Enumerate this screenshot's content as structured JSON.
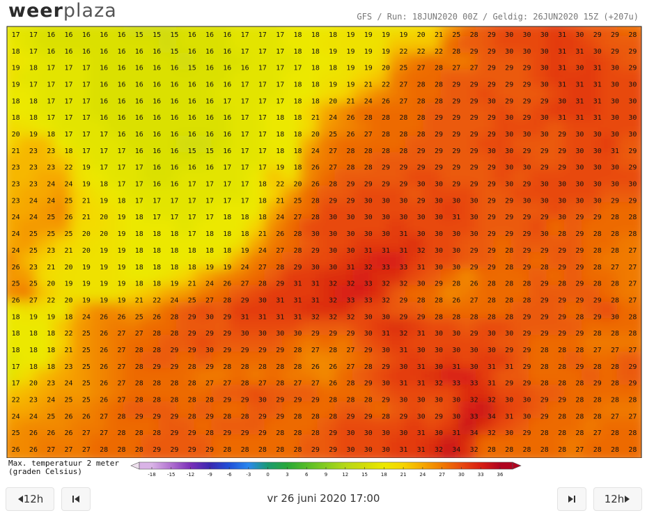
{
  "header": {
    "logo_left": "weer",
    "logo_right": "plaza",
    "run_info": "GFS / Run: 18JUN2020 00Z / Geldig: 26JUN2020 15Z (+207u)"
  },
  "map": {
    "temperatures": [
      [
        17,
        17,
        16,
        16,
        16,
        16,
        16,
        15,
        15,
        15,
        16,
        16,
        16,
        17,
        17,
        17,
        18,
        18,
        18,
        19,
        19,
        19,
        19,
        20,
        21,
        25,
        28,
        29,
        30,
        30,
        30,
        31,
        30,
        29,
        29,
        28
      ],
      [
        18,
        17,
        16,
        16,
        16,
        16,
        16,
        16,
        16,
        15,
        16,
        16,
        16,
        17,
        17,
        17,
        18,
        18,
        19,
        19,
        19,
        19,
        22,
        22,
        22,
        28,
        29,
        29,
        30,
        30,
        30,
        31,
        31,
        30,
        29,
        29
      ],
      [
        19,
        18,
        17,
        17,
        17,
        16,
        16,
        16,
        16,
        16,
        15,
        16,
        16,
        16,
        17,
        17,
        17,
        18,
        18,
        19,
        19,
        20,
        25,
        27,
        28,
        27,
        27,
        29,
        29,
        29,
        30,
        31,
        30,
        31,
        30,
        29
      ],
      [
        19,
        17,
        17,
        17,
        17,
        16,
        16,
        16,
        16,
        16,
        16,
        16,
        16,
        17,
        17,
        17,
        18,
        18,
        19,
        19,
        21,
        22,
        27,
        28,
        28,
        29,
        29,
        29,
        29,
        29,
        30,
        31,
        31,
        31,
        30,
        30
      ],
      [
        18,
        18,
        17,
        17,
        17,
        16,
        16,
        16,
        16,
        16,
        16,
        16,
        17,
        17,
        17,
        17,
        18,
        18,
        20,
        21,
        24,
        26,
        27,
        28,
        28,
        29,
        29,
        30,
        29,
        29,
        29,
        30,
        31,
        31,
        30,
        30
      ],
      [
        18,
        18,
        17,
        17,
        17,
        16,
        16,
        16,
        16,
        16,
        16,
        16,
        16,
        17,
        17,
        18,
        18,
        21,
        24,
        26,
        28,
        28,
        28,
        28,
        29,
        29,
        29,
        29,
        30,
        29,
        30,
        31,
        31,
        31,
        30,
        30
      ],
      [
        20,
        19,
        18,
        17,
        17,
        17,
        16,
        16,
        16,
        16,
        16,
        16,
        16,
        17,
        17,
        18,
        18,
        20,
        25,
        26,
        27,
        28,
        28,
        28,
        29,
        29,
        29,
        29,
        30,
        30,
        30,
        29,
        30,
        30,
        30,
        30
      ],
      [
        21,
        23,
        23,
        18,
        17,
        17,
        17,
        16,
        16,
        16,
        15,
        15,
        16,
        17,
        17,
        18,
        18,
        24,
        27,
        28,
        28,
        28,
        28,
        29,
        29,
        29,
        29,
        30,
        30,
        29,
        29,
        29,
        30,
        30,
        31,
        29
      ],
      [
        23,
        23,
        23,
        22,
        19,
        17,
        17,
        17,
        16,
        16,
        16,
        16,
        17,
        17,
        17,
        19,
        18,
        26,
        27,
        28,
        28,
        29,
        29,
        29,
        29,
        29,
        29,
        29,
        30,
        30,
        29,
        29,
        30,
        30,
        30,
        29
      ],
      [
        23,
        23,
        24,
        24,
        19,
        18,
        17,
        17,
        16,
        16,
        17,
        17,
        17,
        17,
        18,
        22,
        20,
        26,
        28,
        29,
        29,
        29,
        29,
        30,
        30,
        29,
        29,
        29,
        30,
        29,
        30,
        30,
        30,
        30,
        30,
        30
      ],
      [
        23,
        24,
        24,
        25,
        21,
        19,
        18,
        17,
        17,
        17,
        17,
        17,
        17,
        17,
        18,
        21,
        25,
        28,
        29,
        29,
        30,
        30,
        30,
        29,
        30,
        30,
        30,
        29,
        29,
        30,
        30,
        30,
        30,
        30,
        29,
        29
      ],
      [
        24,
        24,
        25,
        26,
        21,
        20,
        19,
        18,
        17,
        17,
        17,
        17,
        18,
        18,
        18,
        24,
        27,
        28,
        30,
        30,
        30,
        30,
        30,
        30,
        30,
        31,
        30,
        29,
        29,
        29,
        29,
        30,
        29,
        29,
        28,
        28
      ],
      [
        24,
        25,
        25,
        25,
        20,
        20,
        19,
        18,
        18,
        18,
        17,
        18,
        18,
        18,
        21,
        26,
        28,
        30,
        30,
        30,
        30,
        30,
        31,
        30,
        30,
        30,
        30,
        29,
        29,
        29,
        30,
        28,
        29,
        28,
        28,
        28
      ],
      [
        24,
        25,
        23,
        21,
        20,
        19,
        19,
        18,
        18,
        18,
        18,
        18,
        18,
        19,
        24,
        27,
        28,
        29,
        30,
        30,
        31,
        31,
        31,
        32,
        30,
        30,
        29,
        29,
        28,
        29,
        29,
        29,
        29,
        28,
        28,
        27
      ],
      [
        26,
        23,
        21,
        20,
        19,
        19,
        19,
        18,
        18,
        18,
        18,
        19,
        19,
        24,
        27,
        28,
        29,
        30,
        30,
        31,
        32,
        33,
        33,
        31,
        30,
        30,
        29,
        29,
        28,
        29,
        28,
        29,
        29,
        28,
        27,
        27
      ],
      [
        25,
        25,
        20,
        19,
        19,
        19,
        19,
        18,
        18,
        19,
        21,
        24,
        26,
        27,
        28,
        29,
        31,
        31,
        32,
        32,
        33,
        32,
        32,
        30,
        29,
        28,
        26,
        28,
        28,
        28,
        29,
        28,
        29,
        28,
        28,
        27
      ],
      [
        26,
        27,
        22,
        20,
        19,
        19,
        19,
        21,
        22,
        24,
        25,
        27,
        28,
        29,
        30,
        31,
        31,
        31,
        32,
        33,
        33,
        32,
        29,
        28,
        28,
        26,
        27,
        28,
        28,
        28,
        29,
        29,
        29,
        29,
        28,
        27
      ],
      [
        18,
        19,
        19,
        18,
        24,
        26,
        26,
        25,
        26,
        28,
        29,
        30,
        29,
        31,
        31,
        31,
        31,
        32,
        32,
        32,
        30,
        30,
        29,
        29,
        28,
        28,
        28,
        28,
        28,
        29,
        29,
        29,
        28,
        29,
        30,
        28
      ],
      [
        18,
        18,
        18,
        22,
        25,
        26,
        27,
        27,
        28,
        28,
        29,
        29,
        29,
        30,
        30,
        30,
        30,
        29,
        29,
        29,
        30,
        31,
        32,
        31,
        30,
        30,
        29,
        30,
        30,
        29,
        29,
        29,
        29,
        28,
        28,
        28
      ],
      [
        18,
        18,
        18,
        21,
        25,
        26,
        27,
        28,
        28,
        29,
        29,
        30,
        29,
        29,
        29,
        29,
        28,
        27,
        28,
        27,
        29,
        30,
        31,
        30,
        30,
        30,
        30,
        30,
        29,
        29,
        28,
        28,
        28,
        27,
        27,
        27
      ],
      [
        17,
        18,
        18,
        23,
        25,
        26,
        27,
        28,
        29,
        29,
        28,
        29,
        28,
        28,
        28,
        28,
        28,
        26,
        26,
        27,
        28,
        29,
        30,
        31,
        30,
        31,
        30,
        31,
        31,
        29,
        28,
        28,
        29,
        28,
        28,
        29
      ],
      [
        17,
        20,
        23,
        24,
        25,
        26,
        27,
        28,
        28,
        28,
        28,
        27,
        27,
        28,
        27,
        28,
        27,
        27,
        26,
        28,
        29,
        30,
        31,
        31,
        32,
        33,
        33,
        31,
        29,
        29,
        28,
        28,
        28,
        29,
        28,
        29
      ],
      [
        22,
        23,
        24,
        25,
        25,
        26,
        27,
        28,
        28,
        28,
        28,
        28,
        29,
        29,
        30,
        29,
        29,
        29,
        28,
        28,
        28,
        29,
        30,
        30,
        30,
        30,
        32,
        32,
        30,
        30,
        29,
        29,
        28,
        28,
        28,
        28
      ],
      [
        24,
        24,
        25,
        26,
        26,
        27,
        28,
        29,
        29,
        29,
        28,
        29,
        28,
        28,
        29,
        29,
        28,
        28,
        28,
        29,
        29,
        28,
        29,
        30,
        29,
        30,
        33,
        34,
        31,
        30,
        29,
        28,
        28,
        28,
        27,
        27
      ],
      [
        25,
        26,
        26,
        26,
        27,
        27,
        28,
        28,
        28,
        29,
        29,
        28,
        29,
        29,
        29,
        28,
        28,
        28,
        29,
        30,
        30,
        30,
        30,
        31,
        30,
        31,
        34,
        32,
        30,
        29,
        28,
        28,
        28,
        27,
        28,
        28
      ],
      [
        26,
        26,
        27,
        27,
        27,
        28,
        28,
        28,
        29,
        29,
        29,
        29,
        28,
        28,
        28,
        28,
        28,
        29,
        29,
        30,
        30,
        30,
        31,
        31,
        32,
        34,
        32,
        28,
        28,
        28,
        28,
        28,
        27,
        28,
        28,
        28
      ]
    ]
  },
  "legend": {
    "title": "Max. temperatuur 2 meter",
    "subtitle": "(graden Celsius)",
    "ticks": [
      -18,
      -15,
      -12,
      -9,
      -6,
      -3,
      0,
      3,
      6,
      9,
      12,
      15,
      18,
      21,
      24,
      27,
      30,
      33,
      36
    ],
    "colors": [
      "#d9b3e6",
      "#b070d0",
      "#7a2fb8",
      "#3a28b0",
      "#2050d8",
      "#2a88ee",
      "#1a9a70",
      "#28a838",
      "#56bc28",
      "#86cc20",
      "#b6d818",
      "#d2dc08",
      "#ece800",
      "#f6d400",
      "#f6a800",
      "#f07a00",
      "#e84a10",
      "#d81e12",
      "#b00420"
    ]
  },
  "nav": {
    "back_label": "12h",
    "date": "vr 26 juni 2020 17:00",
    "forward_label": "12h"
  }
}
